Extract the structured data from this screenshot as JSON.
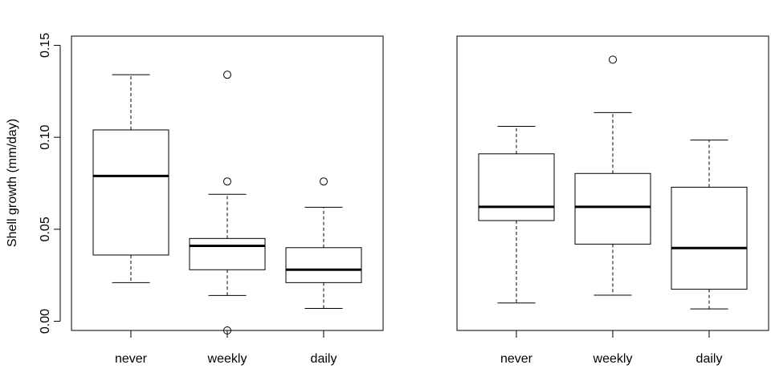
{
  "chart_data": [
    {
      "type": "box",
      "ylabel": "Shell growth (mm/day)",
      "categories": [
        "never",
        "weekly",
        "daily"
      ],
      "ylim": [
        -0.005,
        0.155
      ],
      "yticks": [
        0.0,
        0.05,
        0.1,
        0.15
      ],
      "ytick_labels": [
        "0.00",
        "0.05",
        "0.10",
        "0.15"
      ],
      "boxes": [
        {
          "name": "never",
          "whisker_low": 0.021,
          "q1": 0.036,
          "median": 0.079,
          "q3": 0.104,
          "whisker_high": 0.134,
          "outliers": []
        },
        {
          "name": "weekly",
          "whisker_low": 0.014,
          "q1": 0.028,
          "median": 0.041,
          "q3": 0.045,
          "whisker_high": 0.069,
          "outliers": [
            0.134,
            0.076,
            -0.005
          ]
        },
        {
          "name": "daily",
          "whisker_low": 0.007,
          "q1": 0.021,
          "median": 0.028,
          "q3": 0.04,
          "whisker_high": 0.062,
          "outliers": [
            0.076
          ]
        }
      ]
    },
    {
      "type": "box",
      "ylabel": "",
      "categories": [
        "never",
        "weekly",
        "daily"
      ],
      "ylim": [
        0.01,
        0.16
      ],
      "yticks": [],
      "ytick_labels": [],
      "boxes": [
        {
          "name": "never",
          "whisker_low": 0.024,
          "q1": 0.066,
          "median": 0.073,
          "q3": 0.1,
          "whisker_high": 0.114,
          "outliers": []
        },
        {
          "name": "weekly",
          "whisker_low": 0.028,
          "q1": 0.054,
          "median": 0.073,
          "q3": 0.09,
          "whisker_high": 0.121,
          "outliers": [
            0.148
          ]
        },
        {
          "name": "daily",
          "whisker_low": 0.021,
          "q1": 0.031,
          "median": 0.052,
          "q3": 0.083,
          "whisker_high": 0.107,
          "outliers": []
        }
      ]
    }
  ]
}
